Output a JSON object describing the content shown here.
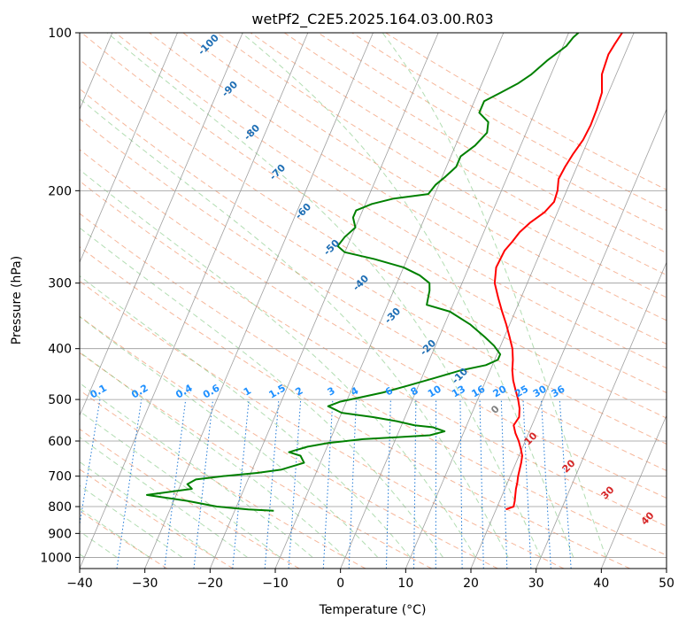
{
  "chart_data": {
    "type": "line",
    "title": "wetPf2_C2E5.2025.164.03.00.R03",
    "xlabel": "Temperature (°C)",
    "ylabel": "Pressure (hPa)",
    "xlim": [
      -40,
      50
    ],
    "ylim": [
      1050,
      100
    ],
    "y_scale": "log",
    "grid": true,
    "x_ticks": [
      "−40",
      "−30",
      "−20",
      "−10",
      "0",
      "10",
      "20",
      "30",
      "40",
      "50"
    ],
    "y_ticks": [
      "100",
      "200",
      "300",
      "400",
      "500",
      "600",
      "700",
      "800",
      "900",
      "1000"
    ],
    "series": [
      {
        "color": "#ff0000",
        "points": [
          [
            21.5,
            810
          ],
          [
            22.5,
            800
          ],
          [
            22.3,
            780
          ],
          [
            22,
            760
          ],
          [
            21.7,
            740
          ],
          [
            21.5,
            720
          ],
          [
            21.2,
            700
          ],
          [
            21,
            680
          ],
          [
            20.8,
            660
          ],
          [
            20.5,
            640
          ],
          [
            19.8,
            620
          ],
          [
            19,
            600
          ],
          [
            18,
            580
          ],
          [
            17.2,
            560
          ],
          [
            17.5,
            540
          ],
          [
            17,
            520
          ],
          [
            16.2,
            500
          ],
          [
            15.2,
            480
          ],
          [
            14.2,
            460
          ],
          [
            13.4,
            440
          ],
          [
            12.8,
            420
          ],
          [
            12,
            400
          ],
          [
            10.8,
            380
          ],
          [
            9.5,
            360
          ],
          [
            8,
            340
          ],
          [
            6.5,
            320
          ],
          [
            5,
            300
          ],
          [
            4.2,
            280
          ],
          [
            4.4,
            260
          ],
          [
            5,
            250
          ],
          [
            5.5,
            240
          ],
          [
            6.5,
            230
          ],
          [
            8,
            220
          ],
          [
            8.8,
            210
          ],
          [
            8.6,
            200
          ],
          [
            8,
            190
          ],
          [
            8.2,
            180
          ],
          [
            8.6,
            170
          ],
          [
            9.2,
            160
          ],
          [
            9.4,
            150
          ],
          [
            9.3,
            140
          ],
          [
            9,
            130
          ],
          [
            7.8,
            120
          ],
          [
            7.5,
            110
          ],
          [
            7.8,
            105
          ],
          [
            8.2,
            100
          ]
        ]
      },
      {
        "color": "#008000",
        "points": [
          [
            -14,
            815
          ],
          [
            -18,
            810
          ],
          [
            -23,
            800
          ],
          [
            -28,
            780
          ],
          [
            -34.5,
            760
          ],
          [
            -28,
            740
          ],
          [
            -29,
            725
          ],
          [
            -28,
            710
          ],
          [
            -24,
            700
          ],
          [
            -19,
            690
          ],
          [
            -15.5,
            680
          ],
          [
            -12.5,
            660
          ],
          [
            -13.5,
            640
          ],
          [
            -15.5,
            630
          ],
          [
            -13,
            615
          ],
          [
            -10,
            605
          ],
          [
            -5,
            595
          ],
          [
            0,
            590
          ],
          [
            5,
            585
          ],
          [
            7,
            575
          ],
          [
            5,
            565
          ],
          [
            2,
            560
          ],
          [
            -1,
            550
          ],
          [
            -5,
            540
          ],
          [
            -10,
            530
          ],
          [
            -12.5,
            515
          ],
          [
            -11,
            505
          ],
          [
            -8,
            495
          ],
          [
            -5,
            485
          ],
          [
            -1.5,
            470
          ],
          [
            2,
            455
          ],
          [
            5.5,
            440
          ],
          [
            9,
            430
          ],
          [
            10.5,
            420
          ],
          [
            10.5,
            410
          ],
          [
            9,
            395
          ],
          [
            7,
            380
          ],
          [
            4,
            360
          ],
          [
            0,
            340
          ],
          [
            -4,
            330
          ],
          [
            -4.5,
            310
          ],
          [
            -5,
            300
          ],
          [
            -7,
            290
          ],
          [
            -10,
            280
          ],
          [
            -15,
            270
          ],
          [
            -20,
            262
          ],
          [
            -21.5,
            255
          ],
          [
            -21,
            245
          ],
          [
            -20,
            235
          ],
          [
            -21,
            225
          ],
          [
            -21,
            218
          ],
          [
            -19,
            212
          ],
          [
            -16,
            207
          ],
          [
            -11,
            203
          ],
          [
            -10.5,
            195
          ],
          [
            -9.5,
            188
          ],
          [
            -8.5,
            180
          ],
          [
            -8.5,
            172
          ],
          [
            -7,
            164
          ],
          [
            -6,
            155
          ],
          [
            -6.5,
            148
          ],
          [
            -8.5,
            142
          ],
          [
            -8.5,
            135
          ],
          [
            -6.5,
            130
          ],
          [
            -4.5,
            125
          ],
          [
            -3,
            120
          ],
          [
            -1.5,
            113
          ],
          [
            0.5,
            106
          ],
          [
            1,
            102
          ],
          [
            1.5,
            100
          ]
        ]
      }
    ],
    "mixing_ratio_labels": [
      "0.1",
      "0.2",
      "0.4",
      "0.6",
      "1",
      "1.5",
      "2",
      "3",
      "4",
      "6",
      "8",
      "10",
      "13",
      "16",
      "20",
      "25",
      "30",
      "36"
    ],
    "dry_adiabat_labels": [
      "-100",
      "-90",
      "-80",
      "-70",
      "-60",
      "-50",
      "-40",
      "-30",
      "-20",
      "-10",
      "0",
      "10",
      "20",
      "30",
      "40"
    ]
  }
}
